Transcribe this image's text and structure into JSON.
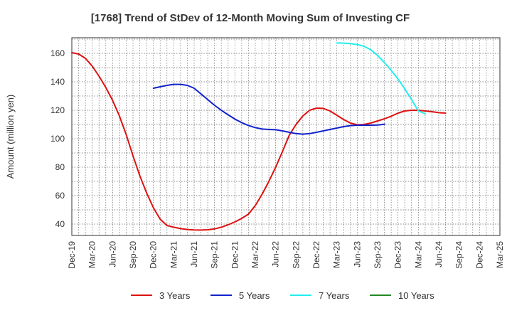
{
  "chart_data": {
    "type": "line",
    "title": "[1768]  Trend of StDev of 12-Month Moving Sum of Investing CF",
    "xlabel": "",
    "ylabel": "Amount (million yen)",
    "ylim": [
      32,
      171
    ],
    "yticks": [
      40,
      60,
      80,
      100,
      120,
      140,
      160
    ],
    "categories": [
      "Dec-19",
      "Mar-20",
      "Jun-20",
      "Sep-20",
      "Dec-20",
      "Mar-21",
      "Jun-21",
      "Sep-21",
      "Dec-21",
      "Mar-22",
      "Jun-22",
      "Sep-22",
      "Dec-22",
      "Mar-23",
      "Jun-23",
      "Sep-23",
      "Dec-23",
      "Mar-24",
      "Jun-24",
      "Sep-24",
      "Dec-24",
      "Mar-25"
    ],
    "grid": true,
    "legend_position": "bottom",
    "series": [
      {
        "name": "3 Years",
        "color": "#dd1111",
        "points": [
          [
            "Dec-19",
            160.5
          ],
          [
            "Jan-20",
            159.5
          ],
          [
            "Feb-20",
            156.5
          ],
          [
            "Mar-20",
            151
          ],
          [
            "Apr-20",
            144
          ],
          [
            "May-20",
            136
          ],
          [
            "Jun-20",
            127
          ],
          [
            "Jul-20",
            116
          ],
          [
            "Aug-20",
            103
          ],
          [
            "Sep-20",
            88
          ],
          [
            "Oct-20",
            74
          ],
          [
            "Nov-20",
            62
          ],
          [
            "Dec-20",
            51.5
          ],
          [
            "Jan-21",
            43.5
          ],
          [
            "Feb-21",
            39
          ],
          [
            "Mar-21",
            37.8
          ],
          [
            "Apr-21",
            36.8
          ],
          [
            "May-21",
            36.2
          ],
          [
            "Jun-21",
            35.9
          ],
          [
            "Jul-21",
            35.8
          ],
          [
            "Aug-21",
            36
          ],
          [
            "Sep-21",
            36.6
          ],
          [
            "Oct-21",
            37.8
          ],
          [
            "Nov-21",
            39.5
          ],
          [
            "Dec-21",
            41.5
          ],
          [
            "Jan-22",
            44
          ],
          [
            "Feb-22",
            47
          ],
          [
            "Mar-22",
            53
          ],
          [
            "Apr-22",
            61
          ],
          [
            "May-22",
            70
          ],
          [
            "Jun-22",
            80
          ],
          [
            "Jul-22",
            91
          ],
          [
            "Aug-22",
            102.5
          ],
          [
            "Sep-22",
            110
          ],
          [
            "Oct-22",
            116
          ],
          [
            "Nov-22",
            120
          ],
          [
            "Dec-22",
            121.5
          ],
          [
            "Jan-23",
            121.3
          ],
          [
            "Feb-23",
            119.5
          ],
          [
            "Mar-23",
            116.5
          ],
          [
            "Apr-23",
            113.5
          ],
          [
            "May-23",
            111
          ],
          [
            "Jun-23",
            109.8
          ],
          [
            "Jul-23",
            110
          ],
          [
            "Aug-23",
            111
          ],
          [
            "Sep-23",
            112.5
          ],
          [
            "Oct-23",
            114
          ],
          [
            "Nov-23",
            115.8
          ],
          [
            "Dec-23",
            118
          ],
          [
            "Jan-24",
            119.5
          ],
          [
            "Feb-24",
            120
          ],
          [
            "Mar-24",
            120
          ],
          [
            "Apr-24",
            119.5
          ],
          [
            "May-24",
            119
          ],
          [
            "Jun-24",
            118.3
          ],
          [
            "Jul-24",
            118
          ]
        ]
      },
      {
        "name": "5 Years",
        "color": "#1122cc",
        "points": [
          [
            "Dec-20",
            135.5
          ],
          [
            "Jan-21",
            136.5
          ],
          [
            "Feb-21",
            137.5
          ],
          [
            "Mar-21",
            138.2
          ],
          [
            "Apr-21",
            138.2
          ],
          [
            "May-21",
            137.5
          ],
          [
            "Jun-21",
            135.5
          ],
          [
            "Jul-21",
            131.5
          ],
          [
            "Aug-21",
            127.5
          ],
          [
            "Sep-21",
            123.5
          ],
          [
            "Oct-21",
            120
          ],
          [
            "Nov-21",
            116.8
          ],
          [
            "Dec-21",
            113.8
          ],
          [
            "Jan-22",
            111.3
          ],
          [
            "Feb-22",
            109.3
          ],
          [
            "Mar-22",
            107.8
          ],
          [
            "Apr-22",
            106.8
          ],
          [
            "May-22",
            106.5
          ],
          [
            "Jun-22",
            106.3
          ],
          [
            "Jul-22",
            105.5
          ],
          [
            "Aug-22",
            104.5
          ],
          [
            "Sep-22",
            103.6
          ],
          [
            "Oct-22",
            103.2
          ],
          [
            "Nov-22",
            103.6
          ],
          [
            "Dec-22",
            104.5
          ],
          [
            "Jan-23",
            105.5
          ],
          [
            "Feb-23",
            106.5
          ],
          [
            "Mar-23",
            107.5
          ],
          [
            "Apr-23",
            108.5
          ],
          [
            "May-23",
            109.2
          ],
          [
            "Jun-23",
            109.5
          ],
          [
            "Jul-23",
            109.5
          ],
          [
            "Aug-23",
            109.5
          ],
          [
            "Sep-23",
            109.6
          ],
          [
            "Oct-23",
            110.2
          ]
        ]
      },
      {
        "name": "7 Years",
        "color": "#22eeee",
        "points": [
          [
            "Mar-23",
            167.3
          ],
          [
            "Apr-23",
            167.2
          ],
          [
            "May-23",
            166.8
          ],
          [
            "Jun-23",
            166.2
          ],
          [
            "Jul-23",
            165
          ],
          [
            "Aug-23",
            162.5
          ],
          [
            "Sep-23",
            158.5
          ],
          [
            "Oct-23",
            153.5
          ],
          [
            "Nov-23",
            148
          ],
          [
            "Dec-23",
            142
          ],
          [
            "Jan-24",
            135
          ],
          [
            "Feb-24",
            127.5
          ],
          [
            "Mar-24",
            119.5
          ],
          [
            "Apr-24",
            117.5
          ]
        ]
      },
      {
        "name": "10 Years",
        "color": "#228822",
        "points": []
      }
    ]
  }
}
